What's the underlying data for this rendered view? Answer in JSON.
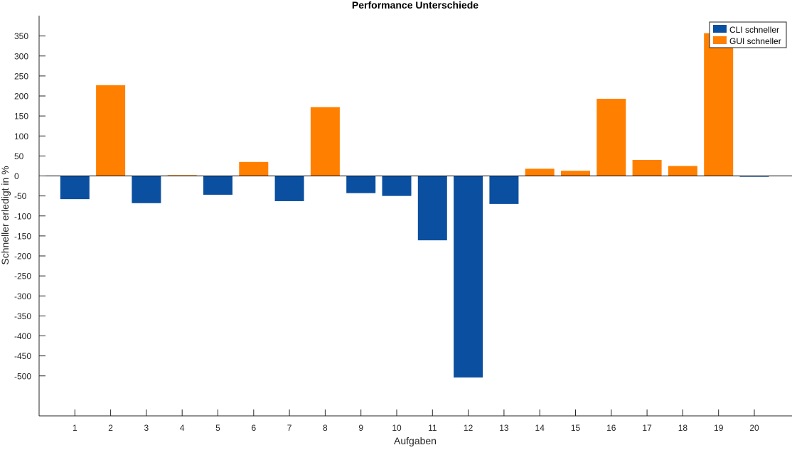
{
  "chart_data": {
    "type": "bar",
    "title": "Performance Unterschiede",
    "xlabel": "Aufgaben",
    "ylabel": "Schneller erledigt in %",
    "categories": [
      "1",
      "2",
      "3",
      "4",
      "5",
      "6",
      "7",
      "8",
      "9",
      "10",
      "11",
      "12",
      "13",
      "14",
      "15",
      "16",
      "17",
      "18",
      "19",
      "20"
    ],
    "yticks": [
      350,
      300,
      250,
      200,
      150,
      100,
      50,
      0,
      -50,
      -100,
      -150,
      -200,
      -250,
      -300,
      -350,
      -400,
      -450,
      -500
    ],
    "ytick_labels": [
      "350",
      "300",
      "250",
      "200",
      "150",
      "100",
      "50",
      "0",
      "-50",
      "-100",
      "-150",
      "-200",
      "-250",
      "-300",
      "-350",
      "-400",
      "-450",
      "-500"
    ],
    "ylim": [
      -600,
      385
    ],
    "grid": false,
    "legend_position": "top-right",
    "series": [
      {
        "name": "CLI schneller",
        "color": "#0a4fa0",
        "values": [
          -58,
          null,
          -68,
          null,
          -47,
          null,
          -63,
          null,
          -43,
          -50,
          -161,
          -504,
          -70,
          null,
          null,
          null,
          null,
          null,
          null,
          -2
        ]
      },
      {
        "name": "GUI schneller",
        "color": "#ff8000",
        "values": [
          null,
          227,
          null,
          2,
          null,
          35,
          null,
          172,
          null,
          null,
          null,
          null,
          null,
          18,
          13,
          193,
          40,
          25,
          357,
          null
        ]
      }
    ]
  }
}
